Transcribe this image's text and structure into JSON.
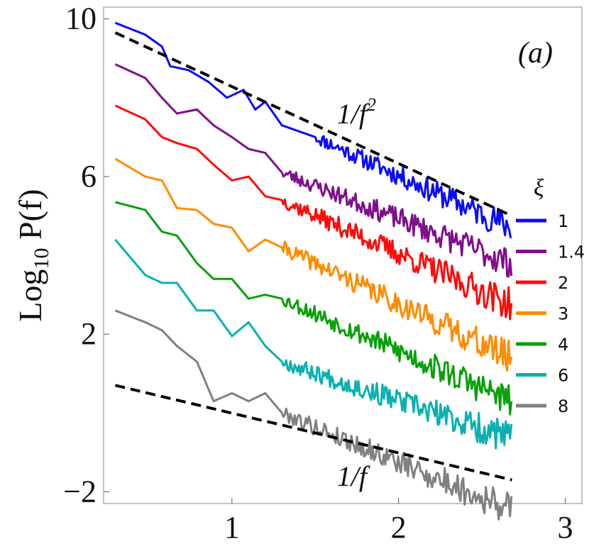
{
  "chart_data": {
    "type": "line",
    "panel_label": "(a)",
    "ylabel_main": "Log",
    "ylabel_sub": "10",
    "ylabel_tail": " P(f)",
    "xlim": [
      0.23,
      3.1
    ],
    "ylim": [
      -2.3,
      10.3
    ],
    "x_ticks": [
      1,
      2,
      3
    ],
    "x_tick_labels": [
      "1",
      "2",
      "3"
    ],
    "y_ticks": [
      -2,
      2,
      6,
      10
    ],
    "y_tick_labels": [
      "−2",
      "2",
      "6",
      "10"
    ],
    "legend_title": "ξ",
    "legend_position": "right",
    "grid": false,
    "series": [
      {
        "name": "1",
        "color": "#0a0aff",
        "seed": 11,
        "start": 9.9,
        "decay": 1.9,
        "noise": 0.28,
        "x": [
          0.3,
          0.48,
          0.58,
          0.63,
          0.74,
          0.86,
          0.97,
          1.07,
          1.14,
          1.2,
          1.3,
          1.5
        ],
        "y": [
          9.9,
          9.6,
          9.3,
          8.8,
          8.7,
          8.4,
          8.0,
          8.2,
          7.7,
          7.9,
          7.3,
          7.0
        ]
      },
      {
        "name": "1.4",
        "color": "#7f0f8a",
        "seed": 23,
        "start": 8.85,
        "decay": 1.85,
        "noise": 0.28,
        "x": [
          0.3,
          0.48,
          0.58,
          0.67,
          0.79,
          0.89,
          1.0,
          1.1,
          1.2,
          1.3
        ],
        "y": [
          8.85,
          8.5,
          8.0,
          7.6,
          7.7,
          7.3,
          7.0,
          6.7,
          6.6,
          6.1
        ]
      },
      {
        "name": "2",
        "color": "#ff0a0a",
        "seed": 37,
        "start": 7.8,
        "decay": 1.85,
        "noise": 0.3,
        "x": [
          0.3,
          0.48,
          0.58,
          0.67,
          0.79,
          0.89,
          1.0,
          1.1,
          1.2,
          1.3
        ],
        "y": [
          7.8,
          7.45,
          7.0,
          6.85,
          6.7,
          6.3,
          5.9,
          6.0,
          5.5,
          5.4
        ]
      },
      {
        "name": "3",
        "color": "#ff8c00",
        "seed": 41,
        "start": 6.45,
        "decay": 1.85,
        "noise": 0.3,
        "x": [
          0.3,
          0.48,
          0.58,
          0.67,
          0.79,
          0.89,
          1.0,
          1.1,
          1.2,
          1.3
        ],
        "y": [
          6.45,
          6.0,
          5.9,
          5.2,
          5.15,
          4.8,
          4.7,
          4.1,
          4.4,
          4.2
        ]
      },
      {
        "name": "4",
        "color": "#0aa00a",
        "seed": 53,
        "start": 5.35,
        "decay": 1.85,
        "noise": 0.3,
        "x": [
          0.3,
          0.48,
          0.58,
          0.67,
          0.79,
          0.89,
          1.0,
          1.1,
          1.2,
          1.3
        ],
        "y": [
          5.35,
          5.15,
          4.6,
          4.5,
          3.8,
          3.4,
          3.4,
          2.9,
          3.0,
          2.9
        ]
      },
      {
        "name": "6",
        "color": "#0ab0b0",
        "seed": 67,
        "start": 4.4,
        "decay": 1.85,
        "noise": 0.3,
        "x": [
          0.3,
          0.48,
          0.58,
          0.67,
          0.79,
          0.89,
          1.0,
          1.1,
          1.2,
          1.3
        ],
        "y": [
          4.4,
          3.5,
          3.3,
          3.3,
          2.6,
          2.6,
          1.95,
          2.3,
          1.7,
          1.3
        ]
      },
      {
        "name": "8",
        "color": "#808080",
        "seed": 79,
        "start": 2.6,
        "decay": 1.85,
        "noise": 0.3,
        "x": [
          0.3,
          0.48,
          0.58,
          0.67,
          0.79,
          0.89,
          1.0,
          1.1,
          1.2,
          1.3
        ],
        "y": [
          2.6,
          2.3,
          2.1,
          1.7,
          1.3,
          0.3,
          0.5,
          0.3,
          0.5,
          0.0
        ]
      }
    ],
    "reference_lines": [
      {
        "label": "1/f",
        "exponent": "2",
        "x": [
          0.3,
          2.68
        ],
        "y": [
          9.65,
          5.0
        ],
        "label_x": 1.63,
        "label_y": 7.35
      },
      {
        "label": "1/f",
        "exponent": "",
        "x": [
          0.3,
          2.68
        ],
        "y": [
          0.7,
          -1.7
        ],
        "label_x": 1.63,
        "label_y": -1.85
      }
    ]
  }
}
